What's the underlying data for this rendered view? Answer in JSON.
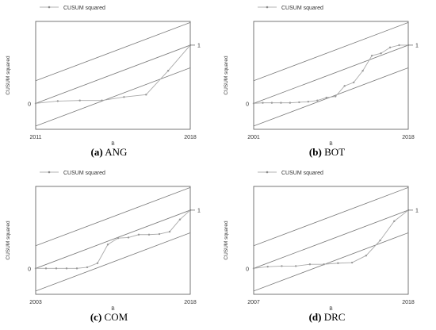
{
  "chart_data": [
    {
      "type": "line",
      "caption_letter": "(a)",
      "caption_name": "ANG",
      "legend": "CUSUM squared",
      "xlabel": "B",
      "ylabel": "CUSUM squared",
      "x_start": "2011",
      "x_end": "2018",
      "y_zero_label": "0",
      "y_one_label": "1",
      "xlim": [
        2011,
        2018
      ],
      "series": [
        {
          "x": [
            2011,
            2012,
            2013,
            2014,
            2015,
            2016,
            2017,
            2018
          ],
          "y": [
            0.0,
            0.04,
            0.05,
            0.05,
            0.11,
            0.15,
            0.56,
            1.0
          ]
        }
      ]
    },
    {
      "type": "line",
      "caption_letter": "(b)",
      "caption_name": "BOT",
      "legend": "CUSUM squared",
      "xlabel": "B",
      "ylabel": "CUSUM squared",
      "x_start": "2001",
      "x_end": "2018",
      "y_zero_label": "0",
      "y_one_label": "1",
      "xlim": [
        2001,
        2018
      ],
      "series": [
        {
          "x": [
            2001,
            2002,
            2003,
            2004,
            2005,
            2006,
            2007,
            2008,
            2009,
            2010,
            2011,
            2012,
            2013,
            2014,
            2015,
            2016,
            2017,
            2018
          ],
          "y": [
            0.0,
            0.01,
            0.01,
            0.01,
            0.01,
            0.02,
            0.03,
            0.05,
            0.1,
            0.12,
            0.3,
            0.36,
            0.56,
            0.82,
            0.86,
            0.96,
            1.0,
            1.0
          ]
        }
      ]
    },
    {
      "type": "line",
      "caption_letter": "(c)",
      "caption_name": "COM",
      "legend": "CUSUM squared",
      "xlabel": "B",
      "ylabel": "CUSUM squared",
      "x_start": "2003",
      "x_end": "2018",
      "y_zero_label": "0",
      "y_one_label": "1",
      "xlim": [
        2003,
        2018
      ],
      "series": [
        {
          "x": [
            2003,
            2004,
            2005,
            2006,
            2007,
            2008,
            2009,
            2010,
            2011,
            2012,
            2013,
            2014,
            2015,
            2016,
            2017,
            2018
          ],
          "y": [
            0.0,
            0.0,
            0.0,
            0.0,
            0.0,
            0.02,
            0.09,
            0.41,
            0.52,
            0.53,
            0.58,
            0.58,
            0.59,
            0.63,
            0.84,
            1.0
          ]
        }
      ]
    },
    {
      "type": "line",
      "caption_letter": "(d)",
      "caption_name": "DRC",
      "legend": "CUSUM squared",
      "xlabel": "B",
      "ylabel": "CUSUM squared",
      "x_start": "2007",
      "x_end": "2018",
      "y_zero_label": "0",
      "y_one_label": "1",
      "xlim": [
        2007,
        2018
      ],
      "series": [
        {
          "x": [
            2007,
            2008,
            2009,
            2010,
            2011,
            2012,
            2013,
            2014,
            2015,
            2016,
            2017,
            2018
          ],
          "y": [
            0.0,
            0.03,
            0.04,
            0.04,
            0.07,
            0.07,
            0.09,
            0.1,
            0.22,
            0.48,
            0.81,
            1.0
          ]
        }
      ]
    }
  ]
}
